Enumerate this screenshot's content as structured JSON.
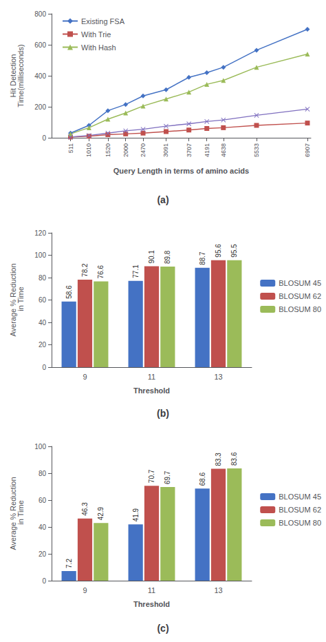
{
  "chart_data": [
    {
      "type": "line",
      "title": "(a)",
      "x": [
        511,
        1010,
        1520,
        2000,
        2470,
        3091,
        3707,
        4191,
        4638,
        5533,
        6907
      ],
      "xlabel": "Query Length in terms of amino acids",
      "ylabel": "Hit Detection\nTime(milliseconds)",
      "xlim": [
        0,
        7000
      ],
      "xticks": [
        511,
        1010,
        1520,
        2000,
        2470,
        3091,
        3707,
        4191,
        4638,
        5533,
        6907
      ],
      "ylim": [
        0,
        800
      ],
      "yticks": [
        0,
        200,
        400,
        600,
        800
      ],
      "legend": "upper left",
      "grid": false,
      "series": [
        {
          "name": "Existing FSA",
          "color": "#4472c4",
          "marker": "diamond",
          "values": [
            30,
            80,
            175,
            215,
            270,
            310,
            390,
            420,
            455,
            565,
            700
          ]
        },
        {
          "name": "With Trie",
          "color": "#c0504d",
          "marker": "square",
          "values": [
            5,
            10,
            20,
            25,
            30,
            40,
            50,
            60,
            65,
            80,
            95
          ]
        },
        {
          "name": "With Hash",
          "color": "#9bbb59",
          "marker": "triangle",
          "values": [
            25,
            65,
            120,
            160,
            205,
            250,
            295,
            345,
            370,
            455,
            540
          ]
        },
        {
          "color": "#7f6fbf",
          "marker": "x",
          "values": [
            5,
            15,
            30,
            45,
            55,
            75,
            90,
            105,
            115,
            145,
            185
          ]
        }
      ]
    },
    {
      "type": "bar",
      "title": "(b)",
      "categories": [
        "9",
        "11",
        "13"
      ],
      "xlabel": "Threshold",
      "ylabel": "Average % Reduction\n in Time",
      "ylim": [
        0,
        120
      ],
      "yticks": [
        0,
        20,
        40,
        60,
        80,
        100,
        120
      ],
      "legend": "right",
      "grid": false,
      "data_labels": true,
      "series": [
        {
          "name": "BLOSUM 45",
          "color": "#4472c4",
          "values": [
            58.6,
            77.1,
            88.7
          ]
        },
        {
          "name": "BLOSUM 62",
          "color": "#c0504d",
          "values": [
            78.2,
            90.1,
            95.6
          ]
        },
        {
          "name": "BLOSUM 80",
          "color": "#9bbb59",
          "values": [
            76.6,
            89.8,
            95.5
          ]
        }
      ]
    },
    {
      "type": "bar",
      "title": "(c)",
      "categories": [
        "9",
        "11",
        "13"
      ],
      "xlabel": "Threshold",
      "ylabel": "Average % Reduction\n in Time",
      "ylim": [
        0,
        100
      ],
      "yticks": [
        0,
        20,
        40,
        60,
        80,
        100
      ],
      "legend": "right",
      "grid": false,
      "data_labels": true,
      "series": [
        {
          "name": "BLOSUM 45",
          "color": "#4472c4",
          "values": [
            7.2,
            41.9,
            68.6
          ]
        },
        {
          "name": "BLOSUM 62",
          "color": "#c0504d",
          "values": [
            46.3,
            70.7,
            83.3
          ]
        },
        {
          "name": "BLOSUM 80",
          "color": "#9bbb59",
          "values": [
            42.9,
            69.7,
            83.6
          ]
        }
      ]
    }
  ]
}
